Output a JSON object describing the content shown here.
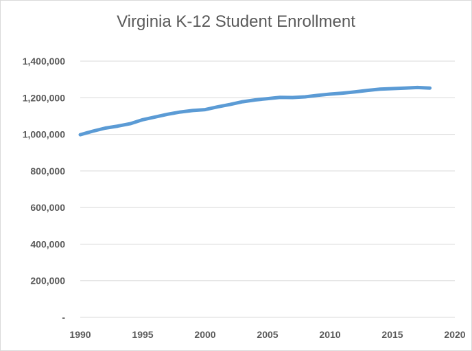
{
  "chart_data": {
    "type": "line",
    "title": "Virginia K-12 Student Enrollment",
    "xlabel": "",
    "ylabel": "",
    "xlim": [
      1990,
      2020
    ],
    "ylim": [
      0,
      1400000
    ],
    "xticks": [
      1990,
      1995,
      2000,
      2005,
      2010,
      2015,
      2020
    ],
    "yticks": [
      0,
      200000,
      400000,
      600000,
      800000,
      1000000,
      1200000,
      1400000
    ],
    "ytick_labels": [
      "-",
      "200,000",
      "400,000",
      "600,000",
      "800,000",
      "1,000,000",
      "1,200,000",
      "1,400,000"
    ],
    "grid": "horizontal",
    "legend": "none",
    "series": [
      {
        "color": "#5b9bd5",
        "x": [
          1990,
          1991,
          1992,
          1993,
          1994,
          1995,
          1996,
          1997,
          1998,
          1999,
          2000,
          2001,
          2002,
          2003,
          2004,
          2005,
          2006,
          2007,
          2008,
          2009,
          2010,
          2011,
          2012,
          2013,
          2014,
          2015,
          2016,
          2017,
          2018
        ],
        "values": [
          998000,
          1017000,
          1034000,
          1045000,
          1058000,
          1080000,
          1095000,
          1110000,
          1122000,
          1130000,
          1135000,
          1150000,
          1163000,
          1178000,
          1188000,
          1195000,
          1202000,
          1201000,
          1205000,
          1213000,
          1220000,
          1225000,
          1232000,
          1240000,
          1247000,
          1250000,
          1253000,
          1256000,
          1253000
        ]
      }
    ]
  }
}
